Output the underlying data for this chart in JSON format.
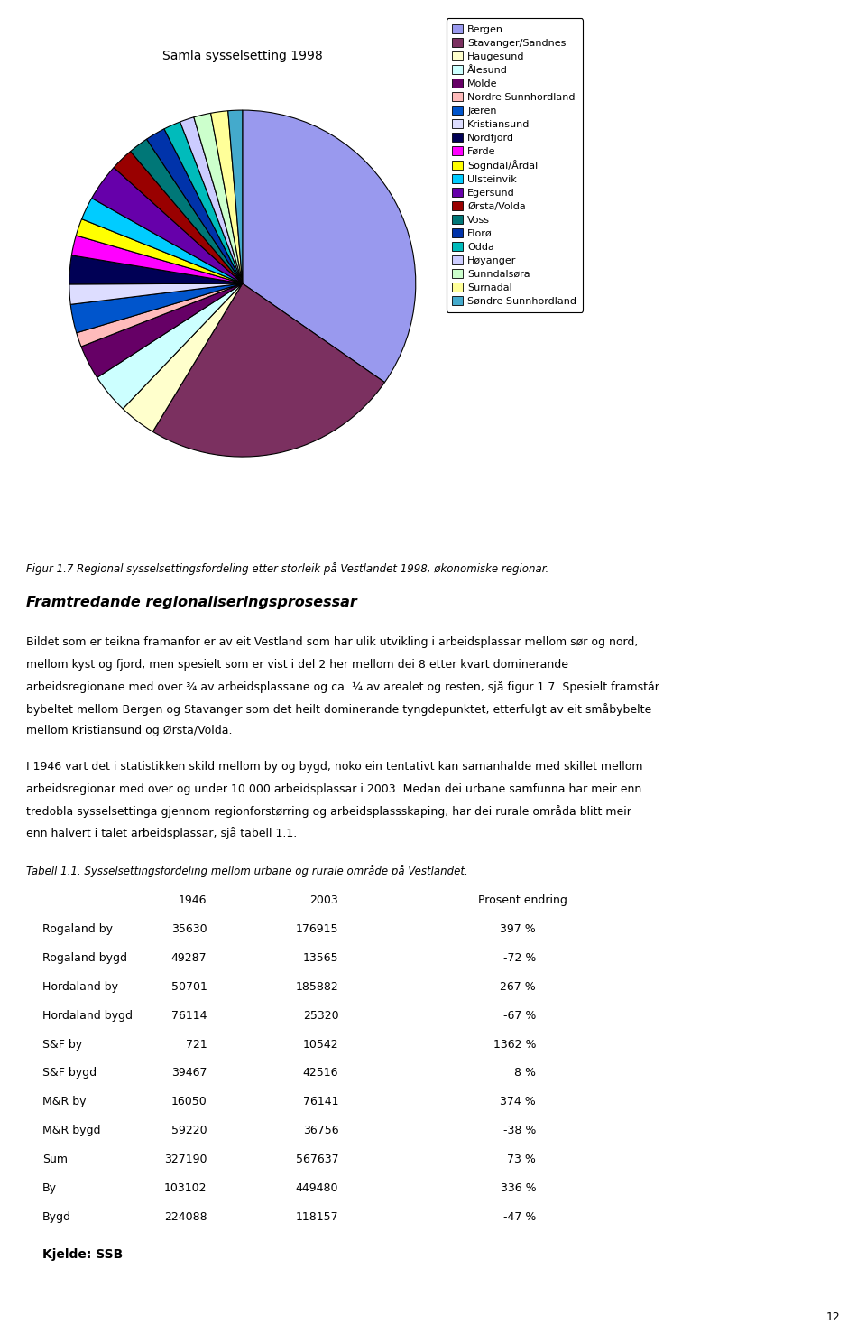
{
  "title": "Samla sysselsetting 1998",
  "pie_labels": [
    "Bergen",
    "Stavanger/Sandnes",
    "Haugesund",
    "Ålesund",
    "Molde",
    "Nordre Sunnhordland",
    "Jæren",
    "Kristiansund",
    "Nordfjord",
    "Førde",
    "Sogndal/Årdal",
    "Ulsteinvik",
    "Egersund",
    "Ørsta/Volda",
    "Voss",
    "Florø",
    "Odda",
    "Høyanger",
    "Sunndalsøra",
    "Surnadal",
    "Søndre Sunnhordland"
  ],
  "pie_values": [
    130,
    90,
    13,
    14,
    12,
    5,
    10,
    7,
    10,
    7,
    6,
    8,
    13,
    8,
    7,
    7,
    6,
    5,
    6,
    6,
    5
  ],
  "pie_colors": [
    "#9999ee",
    "#7b3060",
    "#ffffcc",
    "#ccffff",
    "#660066",
    "#ffbbbb",
    "#0055cc",
    "#ddddff",
    "#000055",
    "#ff00ff",
    "#ffff00",
    "#00ccff",
    "#6600aa",
    "#990000",
    "#007777",
    "#0033aa",
    "#00bbbb",
    "#ccccff",
    "#ccffcc",
    "#ffff99",
    "#44aacc"
  ],
  "figure_caption": "Figur 1.7 Regional sysselsettingsfordeling etter storleik på Vestlandet 1998, økonomiske regionar.",
  "section_title": "Framtredande regionaliseringsprosessar",
  "body_text1_lines": [
    "Bildet som er teikna framanfor er av eit Vestland som har ulik utvikling i arbeidsplassar mellom sør og nord,",
    "mellom kyst og fjord, men spesielt som er vist i del 2 her mellom dei 8 etter kvart dominerande",
    "arbeidsregionane med over ¾ av arbeidsplassane og ca. ¼ av arealet og resten, sjå figur 1.7. Spesielt framstår",
    "bybeltet mellom Bergen og Stavanger som det heilt dominerande tyngdepunktet, etterfulgt av eit småbybelte",
    "mellom Kristiansund og Ørsta/Volda."
  ],
  "body_text2_lines": [
    "I 1946 vart det i statistikken skild mellom by og bygd, noko ein tentativt kan samanhalde med skillet mellom",
    "arbeidsregionar med over og under 10.000 arbeidsplassar i 2003. Medan dei urbane samfunna har meir enn",
    "tredobla sysselsettinga gjennom regionforstørring og arbeidsplassskaping, har dei rurale områda blitt meir",
    "enn halvert i talet arbeidsplassar, sjå tabell 1.1."
  ],
  "table_caption": "Tabell 1.1. Sysselsettingsfordeling mellom urbane og rurale område på Vestlandet.",
  "table_headers": [
    "",
    "1946",
    "2003",
    "Prosent endring"
  ],
  "table_rows": [
    [
      "Rogaland by",
      "35630",
      "176915",
      "397 %"
    ],
    [
      "Rogaland bygd",
      "49287",
      "13565",
      "-72 %"
    ],
    [
      "Hordaland by",
      "50701",
      "185882",
      "267 %"
    ],
    [
      "Hordaland bygd",
      "76114",
      "25320",
      "-67 %"
    ],
    [
      "S&F by",
      "721",
      "10542",
      "1362 %"
    ],
    [
      "S&F bygd",
      "39467",
      "42516",
      "8 %"
    ],
    [
      "M&R by",
      "16050",
      "76141",
      "374 %"
    ],
    [
      "M&R bygd",
      "59220",
      "36756",
      "-38 %"
    ],
    [
      "Sum",
      "327190",
      "567637",
      "73 %"
    ],
    [
      "By",
      "103102",
      "449480",
      "336 %"
    ],
    [
      "Bygd",
      "224088",
      "118157",
      "-47 %"
    ]
  ],
  "footer_source": "Kjelde: SSB",
  "page_number": "12",
  "background_color": "#ffffff"
}
